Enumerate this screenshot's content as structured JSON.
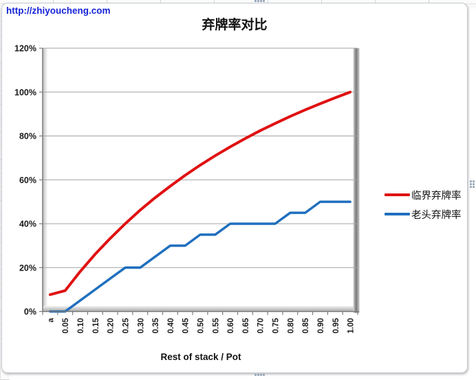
{
  "page": {
    "url_watermark": "http://zhiyoucheng.com"
  },
  "chart_data": {
    "type": "line",
    "title": "弃牌率对比",
    "xlabel": "Rest of stack / Pot",
    "ylabel": "",
    "categories": [
      "a",
      "0.05",
      "0.10",
      "0.15",
      "0.20",
      "0.25",
      "0.30",
      "0.35",
      "0.40",
      "0.45",
      "0.50",
      "0.55",
      "0.60",
      "0.65",
      "0.70",
      "0.75",
      "0.80",
      "0.85",
      "0.90",
      "0.95",
      "1.00"
    ],
    "series": [
      {
        "name": "临界弃牌率",
        "color": "#e01111",
        "values": [
          7.7,
          9.5,
          18.2,
          26.1,
          33.3,
          40.0,
          46.2,
          51.9,
          57.1,
          62.1,
          66.7,
          71.0,
          75.0,
          78.8,
          82.4,
          85.7,
          88.9,
          91.9,
          94.7,
          97.4,
          100.0
        ]
      },
      {
        "name": "老头弃牌率",
        "color": "#1f6fbe",
        "values": [
          0,
          0,
          5,
          10,
          15,
          20,
          20,
          25,
          30,
          30,
          35,
          35,
          40,
          40,
          40,
          40,
          45,
          45,
          50,
          50,
          50
        ]
      }
    ],
    "y_axis": {
      "min": 0,
      "max": 120,
      "step": 20,
      "format": "percent",
      "tick_labels": [
        "0%",
        "20%",
        "40%",
        "60%",
        "80%",
        "100%",
        "120%"
      ]
    },
    "x_axis": {
      "label_rotation": -90
    },
    "legend_position": "right",
    "grid": true,
    "colors": {
      "gridline": "#a3a3a3",
      "axis": "#7a7a7a",
      "tick_text": "#1a1a1a"
    }
  }
}
